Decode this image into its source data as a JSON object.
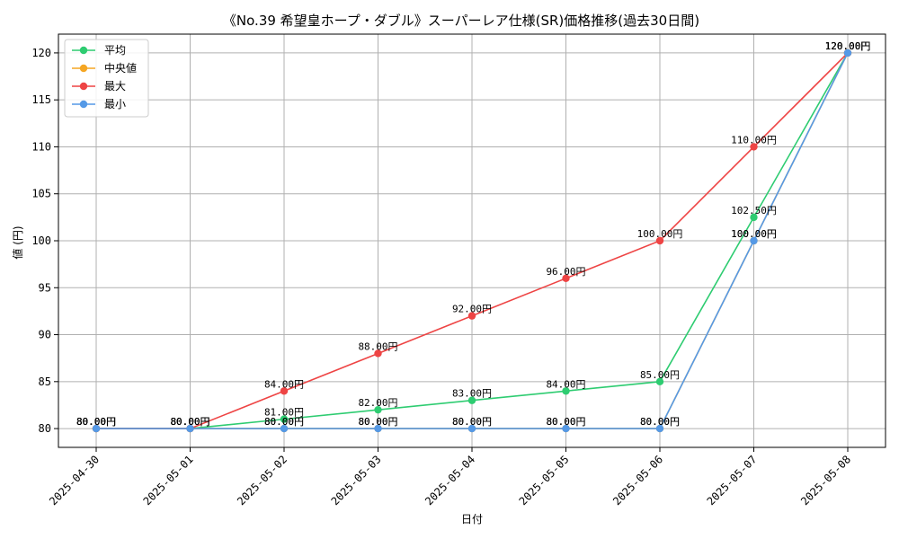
{
  "chart_data": {
    "type": "line",
    "title": "《No.39 希望皇ホープ・ダブル》スーパーレア仕様(SR)価格推移(過去30日間)",
    "xlabel": "日付",
    "ylabel": "値 (円)",
    "categories": [
      "2025-04-30",
      "2025-05-01",
      "2025-05-02",
      "2025-05-03",
      "2025-05-04",
      "2025-05-05",
      "2025-05-06",
      "2025-05-07",
      "2025-05-08"
    ],
    "ylim": [
      78,
      122
    ],
    "yticks": [
      80,
      85,
      90,
      95,
      100,
      105,
      110,
      115,
      120
    ],
    "grid": true,
    "legend_position": "top-left",
    "series": [
      {
        "name": "平均",
        "color": "#2ecc71",
        "values": [
          80,
          80,
          81,
          82,
          83,
          84,
          85,
          102.5,
          120
        ],
        "labels": [
          "80.00円",
          "80.00円",
          "81.00円",
          "82.00円",
          "83.00円",
          "84.00円",
          "85.00円",
          "102.50円",
          "120.00円"
        ]
      },
      {
        "name": "中央値",
        "color": "#f5a623",
        "values": [
          80,
          80,
          80,
          80,
          80,
          80,
          80,
          100,
          120
        ],
        "labels": [
          "80.00円",
          "80.00円",
          "80.00円",
          "80.00円",
          "80.00円",
          "80.00円",
          "80.00円",
          "100.00円",
          "120.00円"
        ]
      },
      {
        "name": "最大",
        "color": "#ee4444",
        "values": [
          80,
          80,
          84,
          88,
          92,
          96,
          100,
          110,
          120
        ],
        "labels": [
          "80.00円",
          "80.00円",
          "84.00円",
          "88.00円",
          "92.00円",
          "96.00円",
          "100.00円",
          "110.00円",
          "120.00円"
        ]
      },
      {
        "name": "最小",
        "color": "#5599e6",
        "values": [
          80,
          80,
          80,
          80,
          80,
          80,
          80,
          100,
          120
        ],
        "labels": [
          "80.00円",
          "80.00円",
          "80.00円",
          "80.00円",
          "80.00円",
          "80.00円",
          "80.00円",
          "100.00円",
          "120.00円"
        ]
      }
    ]
  }
}
